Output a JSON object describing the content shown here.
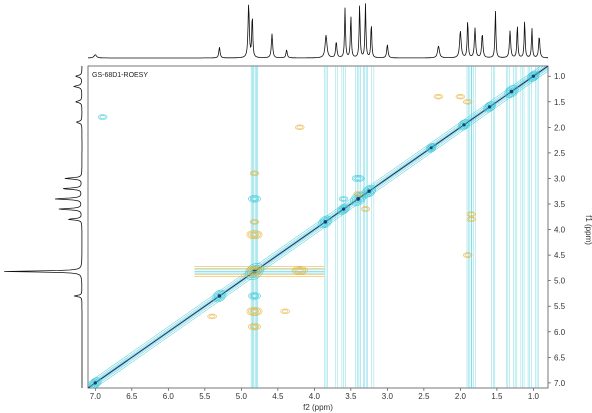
{
  "chart_data": {
    "type": "heatmap",
    "title": "GS-68D1-ROESY",
    "xlabel": "f2 (ppm)",
    "ylabel": "f1 (ppm)",
    "xlim": [
      7.1,
      0.8
    ],
    "ylim": [
      0.8,
      7.1
    ],
    "x_ticks": [
      "7.0",
      "6.5",
      "6.0",
      "5.5",
      "5.0",
      "4.5",
      "4.0",
      "3.5",
      "3.0",
      "2.5",
      "2.0",
      "1.5",
      "1.0"
    ],
    "y_ticks": [
      "1.0",
      "1.5",
      "2.0",
      "2.5",
      "3.0",
      "3.5",
      "4.0",
      "4.5",
      "5.0",
      "5.5",
      "6.0",
      "6.5",
      "7.0"
    ],
    "colors": {
      "positive": "#3cc8d8",
      "negative": "#e8b030",
      "diagonal_dark": "#1e3c6e"
    },
    "columns": [
      {
        "x": 4.82,
        "intensity": 1.0
      },
      {
        "x": 3.84,
        "intensity": 0.5
      },
      {
        "x": 3.7,
        "intensity": 0.35
      },
      {
        "x": 3.6,
        "intensity": 0.5
      },
      {
        "x": 3.4,
        "intensity": 0.7
      },
      {
        "x": 3.3,
        "intensity": 0.6
      },
      {
        "x": 3.2,
        "intensity": 0.4
      },
      {
        "x": 1.88,
        "intensity": 0.6
      },
      {
        "x": 1.82,
        "intensity": 0.5
      },
      {
        "x": 1.55,
        "intensity": 0.45
      },
      {
        "x": 1.35,
        "intensity": 0.45
      },
      {
        "x": 1.25,
        "intensity": 0.5
      },
      {
        "x": 1.15,
        "intensity": 0.45
      },
      {
        "x": 1.05,
        "intensity": 0.5
      },
      {
        "x": 0.95,
        "intensity": 0.45
      }
    ],
    "diagonal_peaks": [
      {
        "ppm": 7.0,
        "size": 0.6
      },
      {
        "ppm": 5.3,
        "size": 0.7
      },
      {
        "ppm": 4.82,
        "size": 1.0
      },
      {
        "ppm": 3.85,
        "size": 0.7
      },
      {
        "ppm": 3.6,
        "size": 0.6
      },
      {
        "ppm": 3.4,
        "size": 0.8
      },
      {
        "ppm": 3.25,
        "size": 0.7
      },
      {
        "ppm": 2.4,
        "size": 0.5
      },
      {
        "ppm": 1.95,
        "size": 0.6
      },
      {
        "ppm": 1.6,
        "size": 0.6
      },
      {
        "ppm": 1.3,
        "size": 0.7
      },
      {
        "ppm": 1.0,
        "size": 0.6
      }
    ],
    "cross_peaks": [
      {
        "x": 4.82,
        "y": 4.8,
        "sign": "negative",
        "w": 0.55
      },
      {
        "x": 4.82,
        "y": 4.1,
        "sign": "negative",
        "w": 0.5
      },
      {
        "x": 4.82,
        "y": 5.6,
        "sign": "negative",
        "w": 0.45
      },
      {
        "x": 4.82,
        "y": 3.85,
        "sign": "negative",
        "w": 0.3
      },
      {
        "x": 4.82,
        "y": 5.9,
        "sign": "negative",
        "w": 0.35
      },
      {
        "x": 4.2,
        "y": 4.8,
        "sign": "negative",
        "w": 0.5
      },
      {
        "x": 4.2,
        "y": 2.0,
        "sign": "negative",
        "w": 0.15
      },
      {
        "x": 3.4,
        "y": 3.3,
        "sign": "negative",
        "w": 0.3
      },
      {
        "x": 3.3,
        "y": 3.6,
        "sign": "negative",
        "w": 0.25
      },
      {
        "x": 1.9,
        "y": 1.5,
        "sign": "negative",
        "w": 0.2
      },
      {
        "x": 2.0,
        "y": 1.4,
        "sign": "negative",
        "w": 0.15
      },
      {
        "x": 2.3,
        "y": 1.4,
        "sign": "negative",
        "w": 0.1
      },
      {
        "x": 1.85,
        "y": 3.7,
        "sign": "negative",
        "w": 0.2
      },
      {
        "x": 1.85,
        "y": 3.8,
        "sign": "negative",
        "w": 0.15
      },
      {
        "x": 1.9,
        "y": 4.5,
        "sign": "negative",
        "w": 0.12
      },
      {
        "x": 4.82,
        "y": 2.9,
        "sign": "negative",
        "w": 0.12
      },
      {
        "x": 5.4,
        "y": 5.7,
        "sign": "negative",
        "w": 0.12
      },
      {
        "x": 4.4,
        "y": 5.6,
        "sign": "negative",
        "w": 0.12
      },
      {
        "x": 3.4,
        "y": 3.0,
        "sign": "positive",
        "w": 0.35
      },
      {
        "x": 3.6,
        "y": 3.4,
        "sign": "positive",
        "w": 0.3
      },
      {
        "x": 4.82,
        "y": 3.4,
        "sign": "positive",
        "w": 0.35
      },
      {
        "x": 4.82,
        "y": 5.3,
        "sign": "positive",
        "w": 0.35
      },
      {
        "x": 6.9,
        "y": 1.8,
        "sign": "positive",
        "w": 0.05
      }
    ],
    "top_projection": [
      {
        "ppm": 7.0,
        "height": 0.06,
        "width": 0.04
      },
      {
        "ppm": 5.3,
        "height": 0.2,
        "width": 0.02
      },
      {
        "ppm": 4.9,
        "height": 1.0,
        "width": 0.02
      },
      {
        "ppm": 4.85,
        "height": 0.8,
        "width": 0.015
      },
      {
        "ppm": 4.58,
        "height": 0.45,
        "width": 0.02
      },
      {
        "ppm": 4.38,
        "height": 0.15,
        "width": 0.02
      },
      {
        "ppm": 3.84,
        "height": 0.42,
        "width": 0.03
      },
      {
        "ppm": 3.7,
        "height": 0.3,
        "width": 0.02
      },
      {
        "ppm": 3.58,
        "height": 0.92,
        "width": 0.015
      },
      {
        "ppm": 3.5,
        "height": 0.8,
        "width": 0.015
      },
      {
        "ppm": 3.38,
        "height": 1.0,
        "width": 0.015
      },
      {
        "ppm": 3.3,
        "height": 1.0,
        "width": 0.015
      },
      {
        "ppm": 3.22,
        "height": 0.65,
        "width": 0.015
      },
      {
        "ppm": 3.0,
        "height": 0.25,
        "width": 0.02
      },
      {
        "ppm": 2.3,
        "height": 0.22,
        "width": 0.03
      },
      {
        "ppm": 2.0,
        "height": 0.5,
        "width": 0.025
      },
      {
        "ppm": 1.9,
        "height": 0.72,
        "width": 0.015
      },
      {
        "ppm": 1.8,
        "height": 0.55,
        "width": 0.02
      },
      {
        "ppm": 1.7,
        "height": 0.45,
        "width": 0.02
      },
      {
        "ppm": 1.52,
        "height": 0.88,
        "width": 0.015
      },
      {
        "ppm": 1.32,
        "height": 0.5,
        "width": 0.02
      },
      {
        "ppm": 1.22,
        "height": 0.62,
        "width": 0.015
      },
      {
        "ppm": 1.12,
        "height": 0.7,
        "width": 0.015
      },
      {
        "ppm": 1.02,
        "height": 0.55,
        "width": 0.015
      },
      {
        "ppm": 0.92,
        "height": 0.4,
        "width": 0.02
      }
    ],
    "left_projection": [
      {
        "ppm": 1.0,
        "height": 0.08,
        "width": 0.04
      },
      {
        "ppm": 1.2,
        "height": 0.1,
        "width": 0.04
      },
      {
        "ppm": 1.5,
        "height": 0.08,
        "width": 0.04
      },
      {
        "ppm": 1.9,
        "height": 0.07,
        "width": 0.04
      },
      {
        "ppm": 3.0,
        "height": 0.22,
        "width": 0.03
      },
      {
        "ppm": 3.2,
        "height": 0.25,
        "width": 0.03
      },
      {
        "ppm": 3.4,
        "height": 0.35,
        "width": 0.03
      },
      {
        "ppm": 3.6,
        "height": 0.3,
        "width": 0.03
      },
      {
        "ppm": 3.8,
        "height": 0.18,
        "width": 0.03
      },
      {
        "ppm": 4.82,
        "height": 1.0,
        "width": 0.025
      },
      {
        "ppm": 5.3,
        "height": 0.1,
        "width": 0.03
      }
    ]
  }
}
